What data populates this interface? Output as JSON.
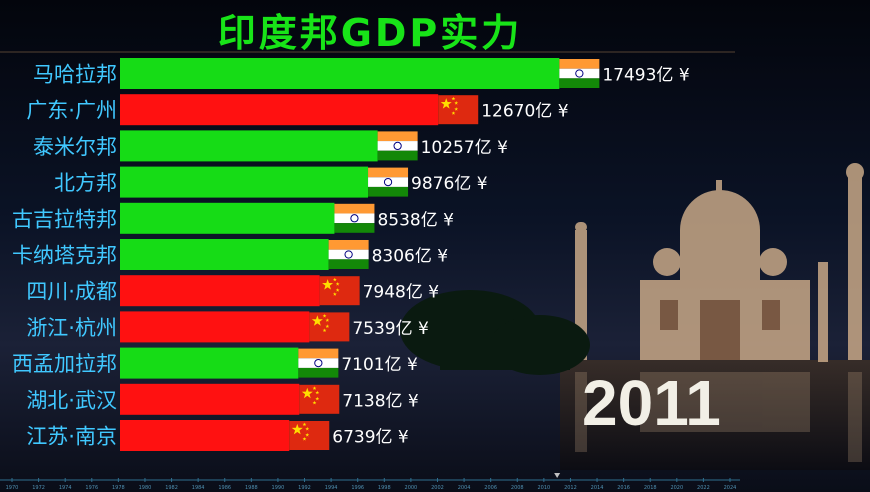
{
  "title": "印度邦GDP实力",
  "year_label": "2011",
  "colors": {
    "india": "#16dc16",
    "china": "#ff1111",
    "label": "#40c8ff",
    "value": "#ffffff",
    "title": "#18e418"
  },
  "chart_data": {
    "type": "bar",
    "orientation": "horizontal",
    "title": "印度邦GDP实力",
    "categories": [
      "马哈拉邦",
      "广东·广州",
      "泰米尔邦",
      "北方邦",
      "古吉拉特邦",
      "卡纳塔克邦",
      "四川·成都",
      "浙江·杭州",
      "西孟加拉邦",
      "湖北·武汉",
      "江苏·南京"
    ],
    "values": [
      17493,
      12670,
      10257,
      9876,
      8538,
      8306,
      7948,
      7539,
      7101,
      7138,
      6739
    ],
    "value_labels": [
      "17493亿 ¥",
      "12670亿 ¥",
      "10257亿 ¥",
      "9876亿 ¥",
      "8538亿 ¥",
      "8306亿 ¥",
      "7948亿 ¥",
      "7539亿 ¥",
      "7101亿 ¥",
      "7138亿 ¥",
      "6739亿 ¥"
    ],
    "country": [
      "india",
      "china",
      "india",
      "india",
      "india",
      "india",
      "china",
      "china",
      "india",
      "china",
      "china"
    ],
    "xlim": [
      0,
      21500
    ],
    "timeline": {
      "ticks": [
        "1970",
        "1972",
        "1974",
        "1976",
        "1978",
        "1980",
        "1982",
        "1984",
        "1986",
        "1988",
        "1990",
        "1992",
        "1994",
        "1996",
        "1998",
        "2000",
        "2002",
        "2004",
        "2006",
        "2008",
        "2010",
        "2012",
        "2014",
        "2016",
        "2018",
        "2020",
        "2022",
        "2024"
      ],
      "current": 2011
    }
  }
}
